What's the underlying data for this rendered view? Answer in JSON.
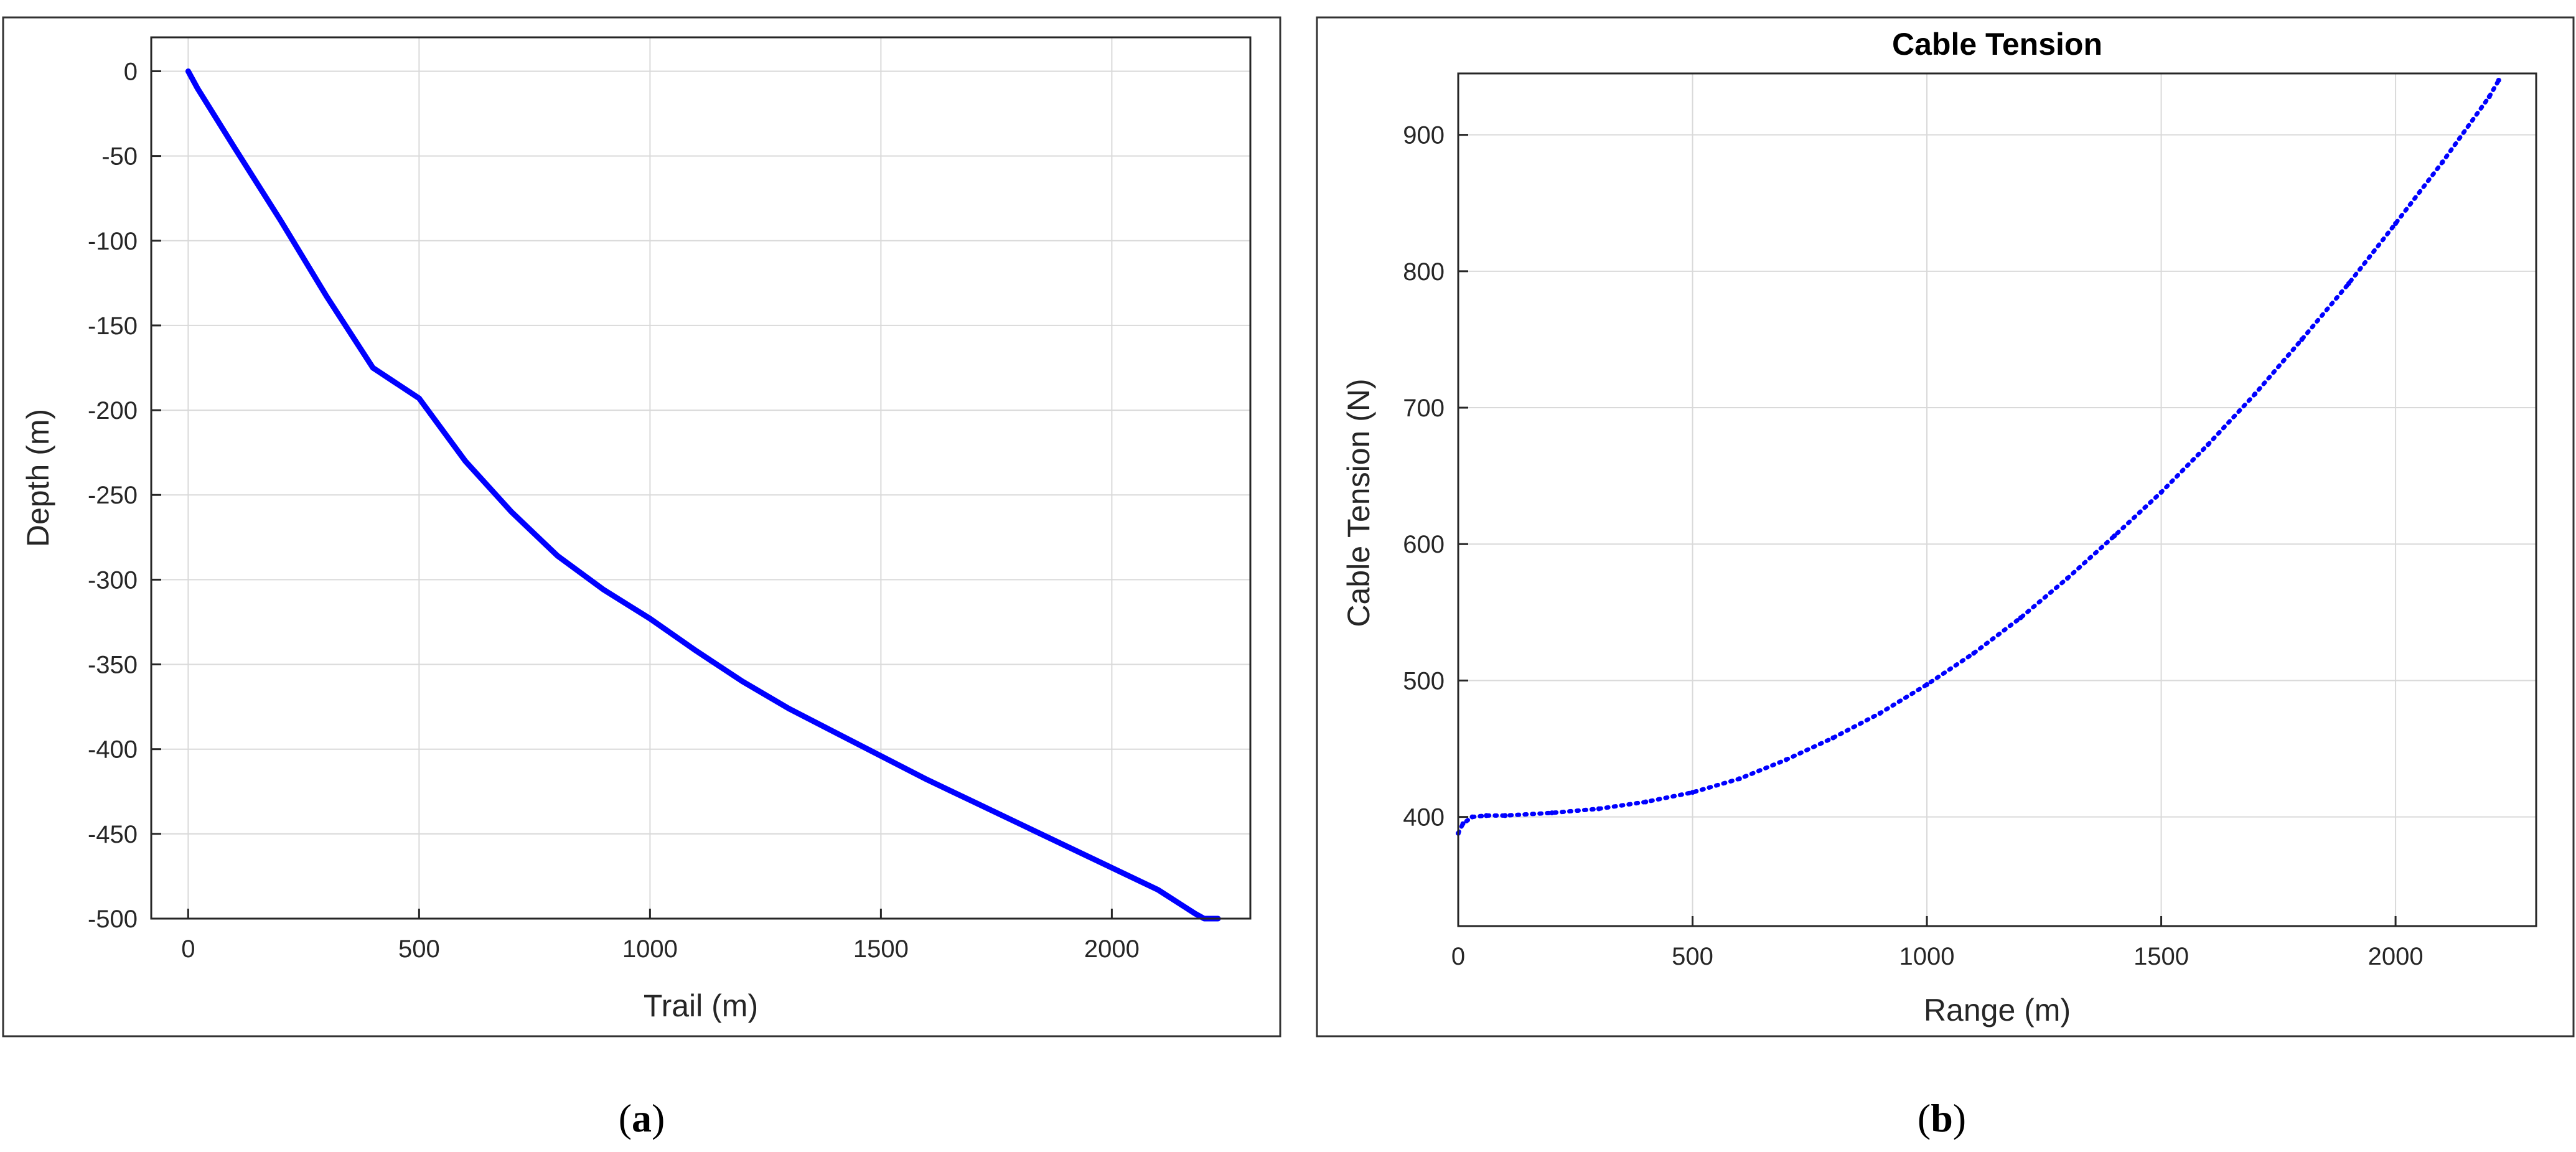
{
  "chart_data": [
    {
      "type": "line",
      "panel": "a",
      "caption": "a",
      "title": "",
      "xlabel": "Trail (m)",
      "ylabel": "Depth (m)",
      "xlim": [
        -80,
        2300
      ],
      "ylim": [
        -500,
        20
      ],
      "xticks": [
        0,
        500,
        1000,
        1500,
        2000
      ],
      "yticks": [
        0,
        -50,
        -100,
        -150,
        -200,
        -250,
        -300,
        -350,
        -400,
        -450,
        -500
      ],
      "xtick_labels": [
        "0",
        "500",
        "1000",
        "1500",
        "2000"
      ],
      "ytick_labels": [
        "0",
        "-50",
        "-100",
        "-150",
        "-200",
        "-250",
        "-300",
        "-350",
        "-400",
        "-450",
        "-500"
      ],
      "grid": true,
      "color": "#0000ff",
      "series": [
        {
          "x": [
            0,
            20,
            100,
            200,
            300,
            400,
            500,
            600,
            700,
            800,
            900,
            1000,
            1100,
            1200,
            1300,
            1400,
            1500,
            1600,
            1700,
            1800,
            1900,
            2000,
            2100,
            2180,
            2200,
            2230
          ],
          "y": [
            0,
            -10,
            -45,
            -88,
            -133,
            -175,
            -193,
            -230,
            -260,
            -286,
            -306,
            -323,
            -342,
            -360,
            -376,
            -390,
            -404,
            -418,
            -431,
            -444,
            -457,
            -470,
            -483,
            -497,
            -500,
            -500
          ]
        }
      ]
    },
    {
      "type": "line",
      "panel": "b",
      "caption": "b",
      "title": "Cable Tension",
      "xlabel": "Range (m)",
      "ylabel": "Cable Tension (N)",
      "xlim": [
        0,
        2300
      ],
      "ylim": [
        320,
        945
      ],
      "xticks": [
        0,
        500,
        1000,
        1500,
        2000
      ],
      "yticks": [
        400,
        500,
        600,
        700,
        800,
        900
      ],
      "xtick_labels": [
        "0",
        "500",
        "1000",
        "1500",
        "2000"
      ],
      "ytick_labels": [
        "400",
        "500",
        "600",
        "700",
        "800",
        "900"
      ],
      "grid": true,
      "color": "#0000ff",
      "series": [
        {
          "x": [
            0,
            10,
            30,
            60,
            100,
            200,
            300,
            400,
            500,
            600,
            700,
            800,
            900,
            1000,
            1100,
            1200,
            1300,
            1400,
            1500,
            1600,
            1700,
            1800,
            1900,
            2000,
            2100,
            2200,
            2220
          ],
          "y": [
            388,
            395,
            400,
            401,
            401,
            403,
            406,
            411,
            418,
            428,
            442,
            458,
            476,
            497,
            520,
            546,
            575,
            606,
            638,
            673,
            710,
            750,
            791,
            835,
            880,
            928,
            940
          ]
        }
      ]
    }
  ]
}
